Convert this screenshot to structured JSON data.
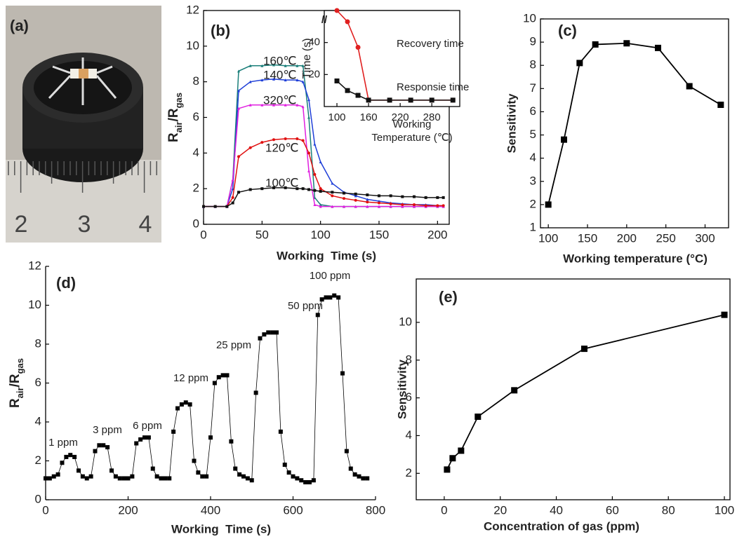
{
  "photo": {
    "label": "(a)",
    "ruler_labels": [
      "2",
      "3",
      "4"
    ]
  },
  "chart_data": [
    {
      "type": "line",
      "panel_label": "(b)",
      "xlabel": "Working  Time (s)",
      "ylabel": [
        "R",
        "air",
        "/R",
        "gas"
      ],
      "xlim": [
        0,
        210
      ],
      "ylim": [
        0,
        12
      ],
      "xticks": [
        0,
        50,
        100,
        150,
        200
      ],
      "yticks": [
        0,
        2,
        4,
        6,
        8,
        10,
        12
      ],
      "x": [
        0,
        10,
        20,
        25,
        30,
        40,
        50,
        60,
        70,
        80,
        85,
        90,
        95,
        100,
        110,
        120,
        130,
        140,
        150,
        160,
        170,
        180,
        190,
        200,
        205
      ],
      "series": [
        {
          "name": "160℃",
          "color": "#1b7f7a",
          "marker": "triangle",
          "values": [
            1,
            1,
            1,
            2.5,
            8.6,
            8.9,
            8.9,
            8.95,
            8.9,
            8.9,
            8.9,
            6.0,
            1.5,
            1.1,
            1.0,
            1.0,
            1.0,
            1.0,
            1.0,
            1.0,
            1.0,
            1.0,
            1.0,
            1.0,
            1.0
          ]
        },
        {
          "name": "140℃",
          "color": "#1f3fd8",
          "marker": "triangle",
          "values": [
            1,
            1,
            1,
            2,
            7.5,
            8.0,
            8.1,
            8.15,
            8.1,
            8.1,
            8.0,
            7.0,
            4.5,
            3.5,
            2.3,
            1.8,
            1.6,
            1.4,
            1.3,
            1.2,
            1.15,
            1.1,
            1.1,
            1.05,
            1.05
          ]
        },
        {
          "name": "320℃",
          "color": "#e020e0",
          "marker": "triangle",
          "values": [
            1,
            1,
            1,
            2.5,
            6.5,
            6.7,
            6.7,
            6.7,
            6.7,
            6.7,
            6.6,
            3.0,
            1.1,
            1.0,
            1.0,
            1.0,
            1.0,
            1.0,
            1.0,
            1.0,
            1.0,
            1.0,
            1.0,
            1.0,
            1.0
          ]
        },
        {
          "name": "120℃",
          "color": "#e01010",
          "marker": "circle",
          "values": [
            1,
            1,
            1,
            1.5,
            3.8,
            4.3,
            4.6,
            4.75,
            4.8,
            4.8,
            4.7,
            4.0,
            2.8,
            2.0,
            1.6,
            1.45,
            1.35,
            1.25,
            1.2,
            1.15,
            1.1,
            1.1,
            1.05,
            1.05,
            1.05
          ]
        },
        {
          "name": "100℃",
          "color": "#111111",
          "marker": "square",
          "values": [
            1,
            1,
            1,
            1.2,
            1.8,
            1.95,
            2.0,
            2.05,
            2.05,
            2.0,
            2.0,
            1.95,
            1.9,
            1.85,
            1.8,
            1.75,
            1.7,
            1.65,
            1.6,
            1.6,
            1.55,
            1.55,
            1.5,
            1.5,
            1.5
          ]
        }
      ]
    },
    {
      "type": "line",
      "xlabel": [
        "Working",
        "Temperature (℃)"
      ],
      "ylabel": "Time (s)",
      "xlim": [
        76,
        333
      ],
      "ylim": [
        0,
        60
      ],
      "xticks": [
        100,
        160,
        220,
        280
      ],
      "yticks": [
        20,
        40
      ],
      "x": [
        100,
        120,
        140,
        160,
        200,
        240,
        280,
        320
      ],
      "series": [
        {
          "name": "Recovery time",
          "color": "#e02020",
          "marker": "circle",
          "values": [
            60,
            53,
            37,
            4,
            4,
            4,
            4,
            4
          ]
        },
        {
          "name": "Responsie time",
          "color": "#111111",
          "marker": "square",
          "values": [
            16,
            10,
            7,
            4,
            4,
            4,
            4,
            4
          ]
        }
      ]
    },
    {
      "type": "line",
      "panel_label": "(c)",
      "xlabel": "Working temperature (°C)",
      "ylabel": "Sensitivity",
      "xlim": [
        90,
        330
      ],
      "ylim": [
        1,
        10
      ],
      "xticks": [
        100,
        150,
        200,
        250,
        300
      ],
      "yticks": [
        1,
        2,
        3,
        4,
        5,
        6,
        7,
        8,
        9,
        10
      ],
      "x": [
        100,
        120,
        140,
        160,
        200,
        240,
        280,
        320
      ],
      "values": [
        2.0,
        4.8,
        8.1,
        8.9,
        8.95,
        8.75,
        7.1,
        6.3
      ],
      "color": "#000000",
      "marker": "square"
    },
    {
      "type": "line",
      "panel_label": "(d)",
      "xlabel": "Working  Time (s)",
      "ylabel": [
        "R",
        "air",
        "/R",
        "gas"
      ],
      "xlim": [
        0,
        800
      ],
      "ylim": [
        0,
        12
      ],
      "xticks": [
        0,
        200,
        400,
        600,
        800
      ],
      "yticks": [
        0,
        2,
        4,
        6,
        8,
        10,
        12
      ],
      "annotations": [
        "1 ppm",
        "3 ppm",
        "6 ppm",
        "12 ppm",
        "25 ppm",
        "50 ppm",
        "100 ppm"
      ],
      "x": [
        0,
        10,
        20,
        30,
        40,
        50,
        60,
        70,
        80,
        90,
        100,
        110,
        120,
        130,
        140,
        150,
        160,
        170,
        180,
        190,
        200,
        210,
        220,
        230,
        240,
        250,
        260,
        270,
        280,
        290,
        300,
        310,
        320,
        330,
        340,
        350,
        360,
        370,
        380,
        390,
        400,
        410,
        420,
        430,
        440,
        450,
        460,
        470,
        480,
        490,
        500,
        510,
        520,
        530,
        540,
        550,
        560,
        570,
        580,
        590,
        600,
        610,
        620,
        630,
        640,
        650,
        660,
        670,
        680,
        690,
        700,
        710,
        720,
        730,
        740,
        750,
        760,
        770,
        780
      ],
      "values": [
        1.1,
        1.1,
        1.2,
        1.3,
        1.9,
        2.2,
        2.3,
        2.2,
        1.5,
        1.2,
        1.1,
        1.2,
        2.5,
        2.8,
        2.8,
        2.7,
        1.5,
        1.2,
        1.1,
        1.1,
        1.1,
        1.2,
        2.9,
        3.1,
        3.2,
        3.2,
        1.6,
        1.2,
        1.1,
        1.1,
        1.1,
        3.5,
        4.7,
        4.9,
        5.0,
        4.9,
        2.0,
        1.4,
        1.2,
        1.2,
        3.2,
        6.0,
        6.3,
        6.4,
        6.4,
        3.0,
        1.6,
        1.3,
        1.2,
        1.1,
        1.0,
        5.5,
        8.3,
        8.5,
        8.6,
        8.6,
        8.6,
        3.5,
        1.8,
        1.4,
        1.2,
        1.1,
        1.0,
        0.9,
        0.9,
        1.0,
        9.5,
        10.3,
        10.4,
        10.4,
        10.5,
        10.4,
        6.5,
        2.5,
        1.6,
        1.3,
        1.2,
        1.1,
        1.1
      ],
      "color": "#000000",
      "marker": "square"
    },
    {
      "type": "line",
      "panel_label": "(e)",
      "xlabel": "Concentration of gas (ppm)",
      "ylabel": "Sensitivity",
      "xlim": [
        -10,
        102
      ],
      "ylim": [
        0.6,
        12.3
      ],
      "xticks": [
        0,
        20,
        40,
        60,
        80,
        100
      ],
      "yticks": [
        2,
        4,
        6,
        8,
        10
      ],
      "x": [
        1,
        3,
        6,
        12,
        25,
        50,
        100
      ],
      "values": [
        2.2,
        2.8,
        3.2,
        5.0,
        6.4,
        8.6,
        10.4
      ],
      "color": "#000000",
      "marker": "square"
    }
  ]
}
